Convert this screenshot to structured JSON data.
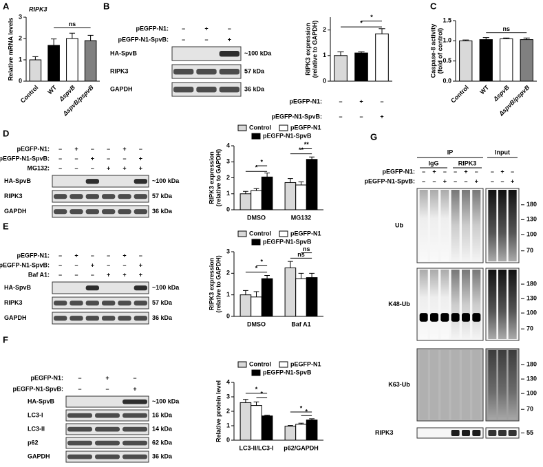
{
  "panels": [
    "A",
    "B",
    "C",
    "D",
    "E",
    "F",
    "G"
  ],
  "chart_data": [
    {
      "type": "bar",
      "title": "RIPK3",
      "ylabel": [
        "Relative mRNA levels"
      ],
      "categories": [
        "Control",
        "WT",
        "ΔspvB",
        "ΔspvB/pspvB"
      ],
      "values": [
        1.0,
        1.68,
        2.0,
        1.9
      ],
      "errors": [
        0.15,
        0.3,
        0.25,
        0.25
      ],
      "colors": [
        "#d9d9d9",
        "#000000",
        "#ffffff",
        "#808080"
      ],
      "ylim": [
        0,
        3
      ],
      "yticks": [
        0,
        1,
        2,
        3
      ],
      "annotations": [
        "ns"
      ]
    },
    {
      "type": "bar",
      "ylabel": [
        "RIPK3 expression",
        "(relative to GAPDH)"
      ],
      "values": [
        1.0,
        1.1,
        1.85
      ],
      "errors": [
        0.15,
        0.05,
        0.2
      ],
      "colors": [
        "#d9d9d9",
        "#000000",
        "#ffffff"
      ],
      "conditions": [
        {
          "label": "pEGFP-N1:",
          "signs": [
            "–",
            "+",
            "–"
          ]
        },
        {
          "label": "pEGFP-N1-SpvB:",
          "signs": [
            "–",
            "–",
            "+"
          ]
        }
      ],
      "ylim": [
        0,
        2.5
      ],
      "yticks": [
        0,
        1,
        2
      ],
      "annotations": [
        "*",
        "*"
      ]
    },
    {
      "type": "bar",
      "ylabel": [
        "Caspase-8 activity",
        "(fold of control)"
      ],
      "categories": [
        "Control",
        "WT",
        "ΔspvB",
        "ΔspvB/pspvB"
      ],
      "values": [
        1.0,
        1.03,
        1.05,
        1.03
      ],
      "errors": [
        0.02,
        0.05,
        0.02,
        0.04
      ],
      "colors": [
        "#d9d9d9",
        "#000000",
        "#ffffff",
        "#808080"
      ],
      "ylim": [
        0,
        1.5
      ],
      "yticks": [
        {
          "value": 0,
          "label": "0.0"
        },
        0.5,
        {
          "value": 1,
          "label": "1.0"
        },
        1.5
      ],
      "annotations": [
        "ns"
      ]
    },
    {
      "type": "grouped_bar",
      "ylabel": [
        "RIPK3 expression",
        "(relative to GAPDH)"
      ],
      "categories": [
        "DMSO",
        "MG132"
      ],
      "series": [
        {
          "name": "Control",
          "color": "#d9d9d9",
          "values": [
            1.0,
            1.7
          ],
          "errors": [
            0.15,
            0.25
          ]
        },
        {
          "name": "pEGFP-N1",
          "color": "#ffffff",
          "values": [
            1.2,
            1.55
          ],
          "errors": [
            0.12,
            0.2
          ]
        },
        {
          "name": "pEGFP-N1-SpvB",
          "color": "#000000",
          "values": [
            2.05,
            3.15
          ],
          "errors": [
            0.25,
            0.15
          ]
        }
      ],
      "ylim": [
        0,
        4
      ],
      "yticks": [
        0,
        1,
        2,
        3,
        4
      ],
      "annotations": [
        "*",
        "*",
        "**",
        "**"
      ]
    },
    {
      "type": "grouped_bar",
      "ylabel": [
        "RIPK3 expression",
        "(relative to GAPDH)"
      ],
      "categories": [
        "DMSO",
        "Baf A1"
      ],
      "series": [
        {
          "name": "Control",
          "color": "#d9d9d9",
          "values": [
            1.0,
            2.25
          ],
          "errors": [
            0.2,
            0.3
          ]
        },
        {
          "name": "pEGFP-N1",
          "color": "#ffffff",
          "values": [
            0.9,
            1.75
          ],
          "errors": [
            0.25,
            0.25
          ]
        },
        {
          "name": "pEGFP-N1-SpvB",
          "color": "#000000",
          "values": [
            1.75,
            1.8
          ],
          "errors": [
            0.15,
            0.2
          ]
        }
      ],
      "ylim": [
        0,
        3
      ],
      "yticks": [
        0,
        1,
        2,
        3
      ],
      "annotations": [
        "*",
        "*",
        "ns",
        "ns"
      ]
    },
    {
      "type": "grouped_bar",
      "ylabel": [
        "Relative protein level"
      ],
      "categories": [
        "LC3-II/LC3-I",
        "p62/GAPDH"
      ],
      "series": [
        {
          "name": "Control",
          "color": "#d9d9d9",
          "values": [
            2.6,
            0.97
          ],
          "errors": [
            0.22,
            0.05
          ]
        },
        {
          "name": "pEGFP-N1",
          "color": "#ffffff",
          "values": [
            2.4,
            1.1
          ],
          "errors": [
            0.25,
            0.08
          ]
        },
        {
          "name": "pEGFP-N1-SpvB",
          "color": "#000000",
          "values": [
            1.68,
            1.4
          ],
          "errors": [
            0.05,
            0.08
          ]
        }
      ],
      "ylim": [
        0,
        4
      ],
      "yticks": [
        0,
        1,
        2,
        3,
        4
      ],
      "annotations": [
        "*",
        "*",
        "*",
        "*"
      ]
    }
  ],
  "blots": {
    "B": {
      "conditions": [
        {
          "label": "pEGFP-N1:",
          "signs": [
            "–",
            "+",
            "–"
          ]
        },
        {
          "label": "pEGFP-N1-SpvB:",
          "signs": [
            "–",
            "–",
            "+"
          ]
        }
      ],
      "rows": [
        {
          "label": "HA-SpvB",
          "kda": "~100 kDa"
        },
        {
          "label": "RIPK3",
          "kda": "57 kDa"
        },
        {
          "label": "GAPDH",
          "kda": "36 kDa"
        }
      ]
    },
    "D": {
      "conditions": [
        {
          "label": "pEGFP-N1:",
          "signs": [
            "–",
            "+",
            "–",
            "–",
            "+",
            "–"
          ]
        },
        {
          "label": "pEGFP-N1-SpvB:",
          "signs": [
            "–",
            "–",
            "+",
            "–",
            "–",
            "+"
          ]
        },
        {
          "label": "MG132:",
          "signs": [
            "–",
            "–",
            "–",
            "+",
            "+",
            "+"
          ]
        }
      ],
      "rows": [
        {
          "label": "HA-SpvB",
          "kda": "~100 kDa"
        },
        {
          "label": "RIPK3",
          "kda": "57 kDa"
        },
        {
          "label": "GAPDH",
          "kda": "36 kDa"
        }
      ]
    },
    "E": {
      "conditions": [
        {
          "label": "pEGFP-N1:",
          "signs": [
            "–",
            "+",
            "–",
            "–",
            "+",
            "–"
          ]
        },
        {
          "label": "pEGFP-N1-SpvB:",
          "signs": [
            "–",
            "–",
            "+",
            "–",
            "–",
            "+"
          ]
        },
        {
          "label": "Baf A1:",
          "signs": [
            "–",
            "–",
            "–",
            "+",
            "+",
            "+"
          ]
        }
      ],
      "rows": [
        {
          "label": "HA-SpvB",
          "kda": "~100 kDa"
        },
        {
          "label": "RIPK3",
          "kda": "57 kDa"
        },
        {
          "label": "GAPDH",
          "kda": "36 kDa"
        }
      ]
    },
    "F": {
      "conditions": [
        {
          "label": "pEGFP-N1:",
          "signs": [
            "–",
            "+",
            "–"
          ]
        },
        {
          "label": "pEGFP-N1-SpvB:",
          "signs": [
            "–",
            "–",
            "+"
          ]
        }
      ],
      "rows": [
        {
          "label": "HA-SpvB",
          "kda": "~100 kDa"
        },
        {
          "label": "LC3-I",
          "kda": "16 kDa"
        },
        {
          "label": "LC3-II",
          "kda": "14 kDa"
        },
        {
          "label": "p62",
          "kda": "62 kDa"
        },
        {
          "label": "GAPDH",
          "kda": "36 kDa"
        }
      ]
    },
    "G": {
      "header": "IP",
      "groups": [
        "IgG",
        "RIPK3",
        "Input"
      ],
      "conditions": [
        {
          "label": "pEGFP-N1:",
          "signs": [
            "–",
            "+",
            "–",
            "–",
            "+",
            "–",
            "–",
            "+",
            "–"
          ]
        },
        {
          "label": "pEGFP-N1-SpvB:",
          "signs": [
            "–",
            "–",
            "+",
            "–",
            "–",
            "+",
            "–",
            "–",
            "+"
          ]
        }
      ],
      "rows": [
        {
          "label": "Ub",
          "markers": [
            "180",
            "130",
            "100",
            "70"
          ]
        },
        {
          "label": "K48-Ub",
          "markers": [
            "180",
            "130",
            "100",
            "70"
          ]
        },
        {
          "label": "K63-Ub",
          "markers": [
            "180",
            "130",
            "100",
            "70"
          ]
        },
        {
          "label": "RIPK3",
          "markers": [
            "55"
          ]
        }
      ]
    }
  }
}
